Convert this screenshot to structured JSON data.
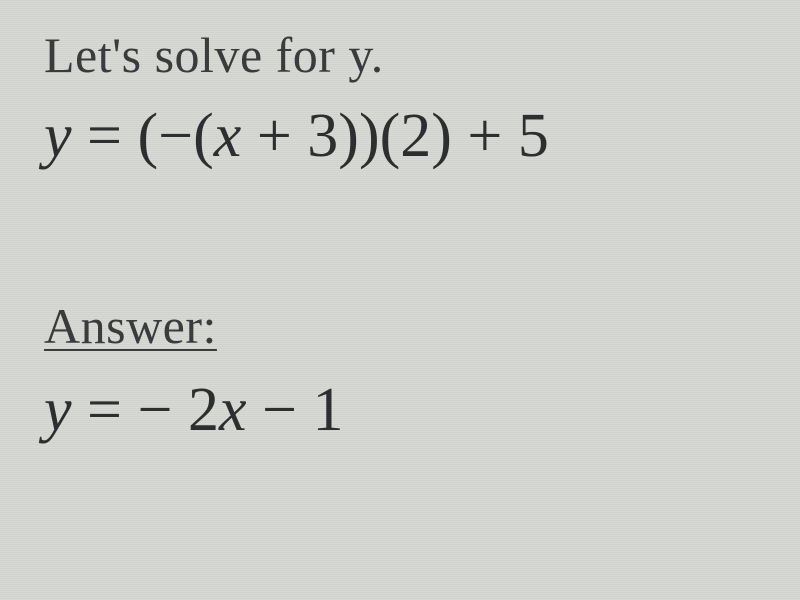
{
  "background": {
    "color_light": "#d8dad5",
    "color_dark": "#d0d2ce",
    "text_color": "#363738"
  },
  "intro": {
    "text": "Let's solve for y.",
    "fontsize": 50,
    "color": "#3a3b3c"
  },
  "equation": {
    "lhs": "y",
    "equals": " = ",
    "part1_open": "(",
    "part1_neg": "−",
    "part1_inner_open": "(",
    "part1_x": "x",
    "part1_plus": " + ",
    "part1_three": "3",
    "part1_inner_close": ")",
    "part1_close": ")",
    "part2_open": "(",
    "part2_two": "2",
    "part2_close": ")",
    "plus": " + ",
    "five": "5",
    "fontsize": 62,
    "color": "#2d2e2f"
  },
  "answer_label": {
    "text": "Answer:",
    "fontsize": 50,
    "color": "#3a3b3c",
    "underline": true
  },
  "answer_equation": {
    "lhs": "y",
    "equals": " = ",
    "neg": " − ",
    "coeff": "2",
    "x": "x",
    "minus": " − ",
    "one": "1",
    "fontsize": 62,
    "color": "#2d2e2f"
  }
}
